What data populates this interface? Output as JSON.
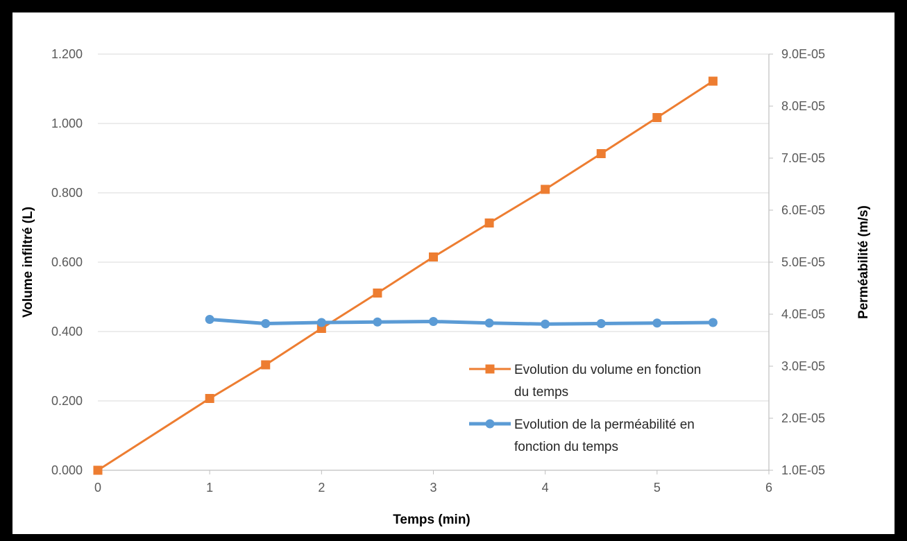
{
  "chart_data": {
    "type": "line",
    "xlabel": "Temps (min)",
    "ylabel_left": "Volume infiltré (L)",
    "ylabel_right": "Perméabilité (m/s)",
    "xlim": [
      0,
      6
    ],
    "ylim_left": [
      0,
      1.2
    ],
    "ylim_right": [
      1e-05,
      9e-05
    ],
    "x_ticks": [
      "0",
      "1",
      "2",
      "3",
      "4",
      "5",
      "6"
    ],
    "y_ticks_left": [
      "0.000",
      "0.200",
      "0.400",
      "0.600",
      "0.800",
      "1.000",
      "1.200"
    ],
    "y_ticks_right": [
      "1.0E-05",
      "2.0E-05",
      "3.0E-05",
      "4.0E-05",
      "5.0E-05",
      "6.0E-05",
      "7.0E-05",
      "8.0E-05",
      "9.0E-05"
    ],
    "grid": "horizontal",
    "legend_position": "right",
    "series": [
      {
        "name": "Evolution du volume en fonction du temps",
        "legend_lines": [
          "Evolution du volume en fonction",
          "du temps"
        ],
        "axis": "left",
        "color": "#ED7D31",
        "marker": "square",
        "x": [
          0,
          1,
          1.5,
          2,
          2.5,
          3,
          3.5,
          4,
          4.5,
          5,
          5.5
        ],
        "values": [
          0.0,
          0.207,
          0.304,
          0.409,
          0.511,
          0.615,
          0.713,
          0.81,
          0.913,
          1.017,
          1.122
        ]
      },
      {
        "name": "Evolution de la perméabilité en fonction du temps",
        "legend_lines": [
          "Evolution de la perméabilité en",
          "fonction du temps"
        ],
        "axis": "right",
        "color": "#5B9BD5",
        "marker": "circle",
        "x": [
          1,
          1.5,
          2,
          2.5,
          3,
          3.5,
          4,
          4.5,
          5,
          5.5
        ],
        "values": [
          3.9e-05,
          3.82e-05,
          3.84e-05,
          3.85e-05,
          3.86e-05,
          3.83e-05,
          3.81e-05,
          3.82e-05,
          3.83e-05,
          3.84e-05
        ]
      }
    ]
  }
}
